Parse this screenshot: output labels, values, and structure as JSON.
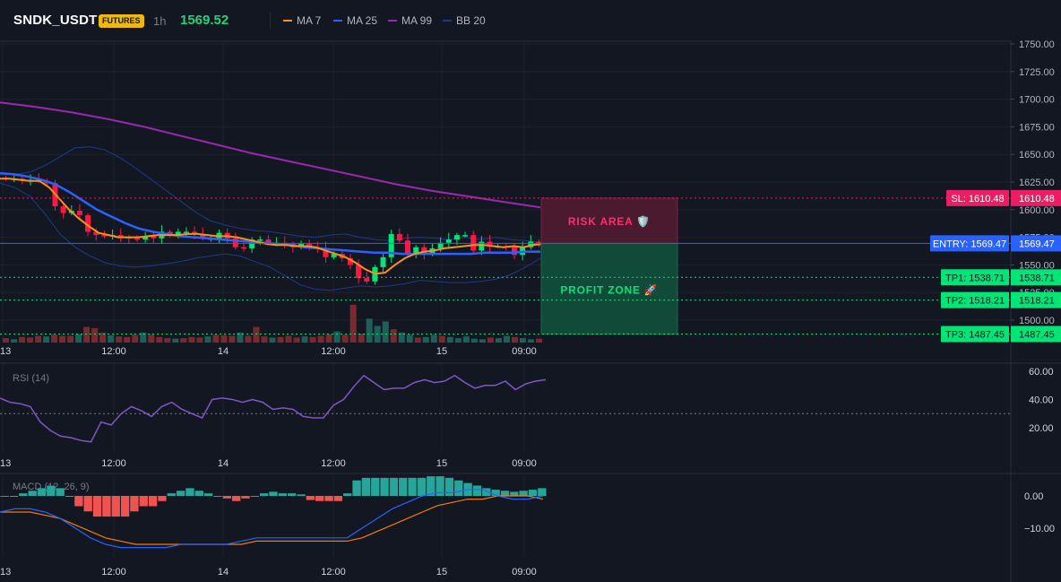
{
  "header": {
    "symbol": "SNDK_USDT",
    "badge": "FUTURES",
    "interval": "1h",
    "last_price": "1569.52",
    "legend": [
      {
        "label": "MA 7",
        "color": "#f7931a"
      },
      {
        "label": "MA 25",
        "color": "#2962ff"
      },
      {
        "label": "MA 99",
        "color": "#9c27b0"
      },
      {
        "label": "BB 20",
        "color": "#1e3a8a"
      }
    ]
  },
  "colors": {
    "up": "#26a69a",
    "down": "#ef5350",
    "up_bright": "#00e676",
    "down_bright": "#ff1744",
    "rsi": "#7e57c2",
    "macd": "#2962ff",
    "signal": "#f57c00"
  },
  "price_axis": {
    "ticks": [
      "1750.00",
      "1725.00",
      "1700.00",
      "1675.00",
      "1650.00",
      "1625.00",
      "1600.00",
      "1575.00",
      "1550.00",
      "1525.00",
      "1500.00"
    ]
  },
  "time_axis": {
    "labels": [
      "13",
      "12:00",
      "14",
      "12:00",
      "15",
      "09:00"
    ]
  },
  "levels": [
    {
      "key": "sl",
      "tag": "SL: 1610.48",
      "value": "1610.48",
      "price": 1610.48,
      "color": "#e91e63",
      "style": "dotted"
    },
    {
      "key": "entry",
      "tag": "ENTRY: 1569.47",
      "value": "1569.47",
      "price": 1569.47,
      "color": "#2962ff",
      "style": "solid"
    },
    {
      "key": "tp1",
      "tag": "TP1: 1538.71",
      "value": "1538.71",
      "price": 1538.71,
      "color": "#00e676",
      "style": "dotted"
    },
    {
      "key": "tp2",
      "tag": "TP2: 1518.21",
      "value": "1518.21",
      "price": 1518.21,
      "color": "#00e676",
      "style": "dotted"
    },
    {
      "key": "tp3",
      "tag": "TP3: 1487.45",
      "value": "1487.45",
      "price": 1487.45,
      "color": "#00e676",
      "style": "dotted"
    }
  ],
  "zones": {
    "risk_label": "RISK AREA 🛡️",
    "profit_label": "PROFIT ZONE 🚀"
  },
  "rsi": {
    "title": "RSI (14)",
    "ticks": [
      "60.00",
      "40.00",
      "20.00"
    ]
  },
  "macd": {
    "title": "MACD (12, 26, 9)",
    "ticks": [
      "0.00",
      "−10.00"
    ]
  },
  "chart_data": {
    "type": "line",
    "x": [
      "13",
      "12:00",
      "14",
      "12:00",
      "15",
      "09:00"
    ],
    "candles_close": [
      1628,
      1628,
      1627,
      1627,
      1626,
      1624,
      1603,
      1597,
      1599,
      1595,
      1580,
      1577,
      1576,
      1577,
      1575,
      1574,
      1573,
      1576,
      1574,
      1580,
      1577,
      1580,
      1580,
      1578,
      1574,
      1574,
      1579,
      1574,
      1566,
      1565,
      1573,
      1573,
      1570,
      1570,
      1569,
      1566,
      1569,
      1566,
      1565,
      1557,
      1560,
      1556,
      1550,
      1538,
      1535,
      1548,
      1557,
      1578,
      1572,
      1560,
      1566,
      1560,
      1565,
      1570,
      1573,
      1577,
      1577,
      1563,
      1571,
      1567,
      1567,
      1566,
      1559,
      1566,
      1571,
      1569
    ],
    "ma7": [
      1628,
      1628,
      1627,
      1626,
      1626,
      1620,
      1610,
      1600,
      1592,
      1585,
      1579,
      1577,
      1575,
      1575,
      1575,
      1576,
      1577,
      1577,
      1577,
      1578,
      1578,
      1577,
      1576,
      1576,
      1575,
      1573,
      1571,
      1569,
      1568,
      1568,
      1567,
      1567,
      1566,
      1563,
      1560,
      1557,
      1552,
      1546,
      1542,
      1543,
      1550,
      1556,
      1560,
      1562,
      1563,
      1565,
      1566,
      1567,
      1568,
      1568,
      1567,
      1566,
      1567,
      1566,
      1568,
      1569
    ],
    "ma25": [
      1633,
      1632,
      1630,
      1627,
      1623,
      1616,
      1608,
      1600,
      1594,
      1588,
      1583,
      1580,
      1578,
      1576,
      1575,
      1574,
      1573,
      1572,
      1571,
      1570,
      1569,
      1568,
      1566,
      1565,
      1564,
      1563,
      1562,
      1561,
      1561,
      1560,
      1560,
      1560,
      1560,
      1560,
      1560,
      1561,
      1561,
      1561,
      1562,
      1562
    ],
    "ma99": [
      1697,
      1693,
      1688,
      1682,
      1675,
      1667,
      1659,
      1651,
      1644,
      1637,
      1630,
      1623,
      1617,
      1612,
      1607,
      1602
    ],
    "rsi_values": [
      41,
      38,
      37,
      35,
      24,
      18,
      14,
      13,
      11,
      10,
      24,
      22,
      30,
      35,
      32,
      28,
      35,
      38,
      33,
      30,
      27,
      40,
      41,
      40,
      38,
      40,
      38,
      33,
      34,
      33,
      28,
      27,
      27,
      36,
      40,
      49,
      57,
      52,
      47,
      48,
      48,
      52,
      54,
      52,
      53,
      57,
      52,
      48,
      50,
      50,
      53,
      47,
      51,
      53,
      54
    ],
    "rsi_level": 30,
    "macd_values": [
      -5,
      -4,
      -4,
      -5,
      -7,
      -10,
      -13,
      -15,
      -16,
      -16,
      -16,
      -16,
      -15,
      -15,
      -15,
      -15,
      -14,
      -13,
      -13,
      -13,
      -13,
      -13,
      -13,
      -13,
      -10,
      -7,
      -4,
      -2,
      0,
      1,
      1,
      2,
      2,
      0,
      -1,
      -1,
      0
    ],
    "signal_values": [
      -5,
      -5,
      -5,
      -6,
      -7,
      -9,
      -11,
      -13,
      -14,
      -15,
      -15,
      -15,
      -15,
      -15,
      -15,
      -15,
      -15,
      -14,
      -14,
      -14,
      -14,
      -14,
      -14,
      -14,
      -13,
      -11,
      -9,
      -7,
      -5,
      -3,
      -2,
      -1,
      -1,
      0,
      0,
      0,
      -1
    ],
    "hist_values": [
      0,
      0,
      0.5,
      1,
      1.5,
      2,
      1.5,
      0,
      -2,
      -3,
      -4,
      -4,
      -4,
      -4,
      -3,
      -2,
      -2,
      -1,
      0.5,
      1,
      1.5,
      1,
      0.5,
      0,
      -0.5,
      -1,
      -0.5,
      0,
      0.5,
      0.8,
      0.5,
      0.5,
      0.3,
      -0.8,
      -1,
      -1,
      -1,
      0.5,
      3,
      3.5,
      3.5,
      3.5,
      3.5,
      3.5,
      3.5,
      3.5,
      3.8,
      3.8,
      3.5,
      3,
      2.5,
      2,
      1.5,
      1.2,
      1,
      0.8,
      1,
      1.2,
      1.5
    ]
  }
}
